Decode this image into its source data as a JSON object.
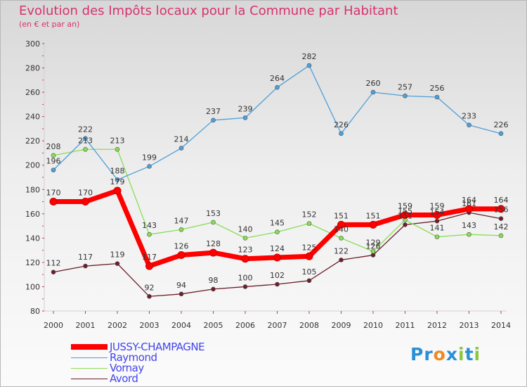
{
  "title": "Evolution des Impôts locaux pour la Commune par Habitant",
  "subtitle": "(en € et par an)",
  "logo": {
    "p1": "Pr",
    "o": "o",
    "x": "x",
    "i": "i",
    "t": "t",
    "i2": "i"
  },
  "chart_data": {
    "type": "line",
    "title": "Evolution des Impôts locaux pour la Commune par Habitant",
    "subtitle": "(en € et par an)",
    "xlabel": "",
    "ylabel": "",
    "x": [
      "2000",
      "2001",
      "2002",
      "2003",
      "2004",
      "2005",
      "2006",
      "2007",
      "2008",
      "2009",
      "2010",
      "2011",
      "2012",
      "2013",
      "2014"
    ],
    "ylim": [
      80,
      300
    ],
    "yticks": [
      80,
      100,
      120,
      140,
      160,
      180,
      200,
      220,
      240,
      260,
      280,
      300
    ],
    "grid": false,
    "legend_position": "bottom-left",
    "series": [
      {
        "name": "JUSSY-CHAMPAGNE",
        "color": "#ff0000",
        "values": [
          170,
          170,
          179,
          117,
          126,
          128,
          123,
          124,
          125,
          151,
          151,
          159,
          159,
          164,
          164
        ]
      },
      {
        "name": "Raymond",
        "color": "#4f9fd8",
        "values": [
          196,
          222,
          188,
          199,
          214,
          237,
          239,
          264,
          282,
          226,
          260,
          257,
          256,
          233,
          226
        ]
      },
      {
        "name": "Vornay",
        "color": "#88dd55",
        "values": [
          208,
          213,
          213,
          143,
          147,
          153,
          140,
          145,
          152,
          140,
          129,
          155,
          141,
          143,
          142
        ]
      },
      {
        "name": "Avord",
        "color": "#6b1f2a",
        "values": [
          112,
          117,
          119,
          92,
          94,
          98,
          100,
          102,
          105,
          122,
          126,
          151,
          154,
          161,
          156
        ]
      }
    ],
    "labels": {
      "JUSSY-CHAMPAGNE": [
        "170",
        "170",
        "179",
        "117",
        "126",
        "128",
        "123",
        "124",
        "125",
        "151",
        "151",
        "159",
        "159",
        "164",
        "164"
      ],
      "Raymond": [
        "196",
        "222",
        "188",
        "199",
        "214",
        "237",
        "239",
        "264",
        "282",
        "226",
        "260",
        "257",
        "256",
        "233",
        "226"
      ],
      "Vornay": [
        "208",
        "213",
        "213",
        "143",
        "147",
        "153",
        "140",
        "145",
        "152",
        "140",
        "129",
        "155",
        "141",
        "143",
        "142"
      ],
      "Avord": [
        "112",
        "117",
        "119",
        "92",
        "94",
        "98",
        "100",
        "102",
        "105",
        "122",
        "126",
        "151",
        "154",
        "161",
        "156"
      ]
    }
  }
}
